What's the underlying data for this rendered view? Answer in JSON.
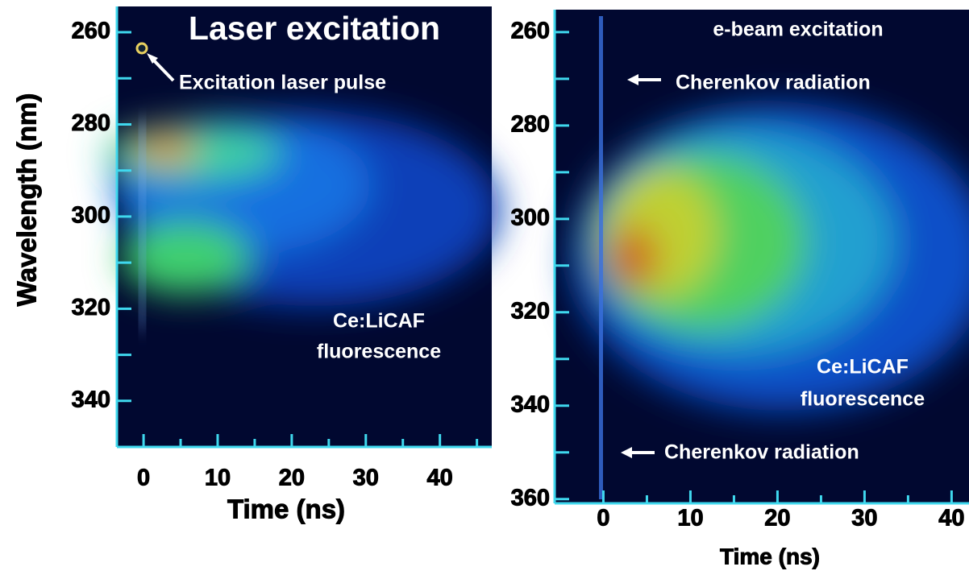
{
  "chart_data": [
    {
      "type": "image",
      "title": "Laser excitation",
      "xlabel": "Time (ns)",
      "ylabel": "Wavelength (nm)",
      "xlim": [
        -3.6,
        47
      ],
      "xticks": [
        0,
        10,
        20,
        30,
        40
      ],
      "xminorticks": [
        5,
        15,
        25,
        35,
        45
      ],
      "ylim": [
        254.4,
        350
      ],
      "y_inverted": true,
      "yticks": [
        260,
        280,
        300,
        320,
        340
      ],
      "yminorticks": [
        270,
        290,
        310,
        330
      ],
      "axis_color": "#3fd8ee",
      "annotations": [
        "Excitation laser pulse",
        "Ce:LiCAF",
        "fluorescence"
      ]
    },
    {
      "type": "image",
      "title": "e-beam excitation",
      "xlabel": "Time (ns)",
      "xlim": [
        -5.6,
        42
      ],
      "xticks": [
        0,
        10,
        20,
        30,
        40
      ],
      "xminorticks": [
        5,
        15,
        25,
        35
      ],
      "ylim": [
        255.2,
        360.9
      ],
      "y_inverted": true,
      "yticks": [
        260,
        280,
        300,
        320,
        340,
        360
      ],
      "yminorticks": [
        270,
        290,
        310,
        330,
        350
      ],
      "axis_color": "#3fd8ee",
      "annotations": [
        "Cherenkov  radiation",
        "Cherenkov  radiation",
        "Ce:LiCAF",
        "fluorescence"
      ]
    }
  ]
}
